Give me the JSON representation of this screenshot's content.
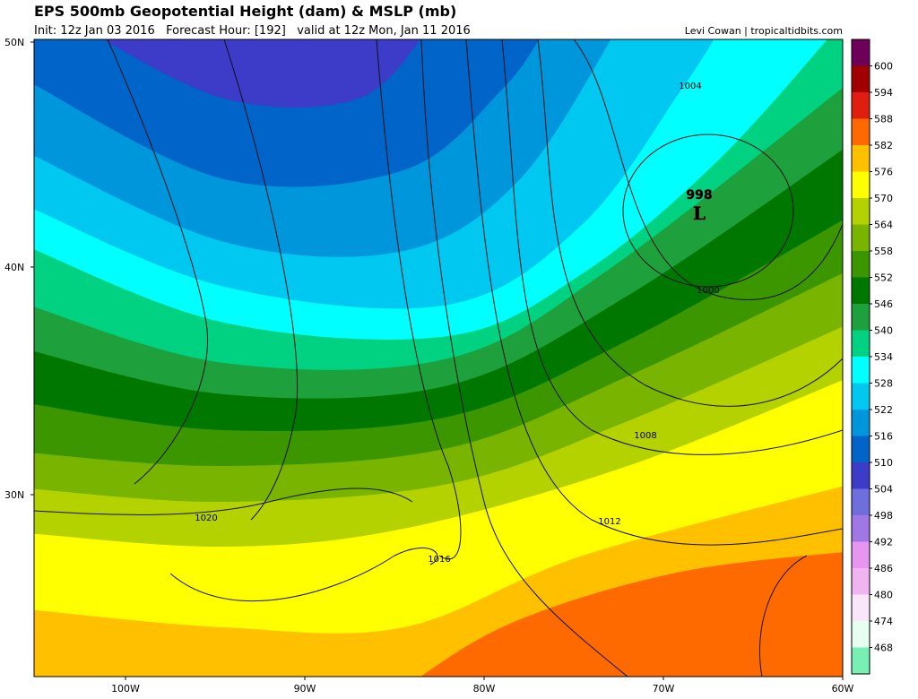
{
  "header": {
    "title": "EPS 500mb Geopotential Height (dam) & MSLP (mb)",
    "subtitle": "Init: 12z Jan 03 2016   Forecast Hour: [192]   valid at 12z Mon, Jan 11 2016",
    "credit": "Levi Cowan | tropicaltidbits.com"
  },
  "map": {
    "lat_labels": [
      "50N",
      "40N",
      "30N"
    ],
    "lon_labels": [
      "100W",
      "90W",
      "80W",
      "70W",
      "60W"
    ],
    "isobar_labels": [
      "1004",
      "1000",
      "1008",
      "1012",
      "1016",
      "1020"
    ],
    "low": {
      "pressure": "998",
      "symbol": "L"
    }
  },
  "colorbar": {
    "levels": [
      600,
      594,
      588,
      582,
      576,
      570,
      564,
      558,
      552,
      546,
      540,
      534,
      528,
      522,
      516,
      510,
      504,
      498,
      492,
      486,
      480,
      474,
      468
    ],
    "colors": [
      "#6e0059",
      "#a00000",
      "#e01e10",
      "#ff6a00",
      "#ffc000",
      "#ffff00",
      "#b4d200",
      "#78b400",
      "#3c9600",
      "#007800",
      "#1ea03c",
      "#00d282",
      "#00ffff",
      "#00c8f0",
      "#0096dc",
      "#0064c8",
      "#3c3cc8",
      "#6e6edc",
      "#a078e6",
      "#e696f0",
      "#f0b4f0",
      "#fae6fa",
      "#e6fff0",
      "#78f0b4"
    ]
  }
}
